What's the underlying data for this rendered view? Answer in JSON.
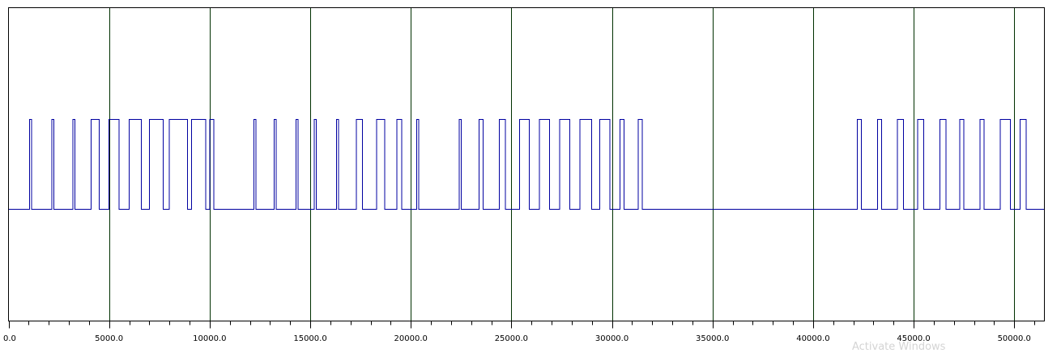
{
  "chart_data": {
    "type": "line",
    "title": "",
    "xlabel": "",
    "ylabel": "",
    "xlim": [
      0,
      51500
    ],
    "ylim": [
      -1.75,
      1.75
    ],
    "grid": true,
    "major_ticks": [
      0,
      5000,
      10000,
      15000,
      20000,
      25000,
      30000,
      35000,
      40000,
      45000,
      50000
    ],
    "minor_tick_step": 1000,
    "x_tick_labels": [
      "0.0",
      "5000.0",
      "10000.0",
      "15000.0",
      "20000.0",
      "25000.0",
      "30000.0",
      "35000.0",
      "40000.0",
      "45000.0",
      "50000.0"
    ],
    "series": [
      {
        "low": -0.5,
        "high": 0.5,
        "transitions": [
          0,
          1050,
          1150,
          2150,
          2250,
          3200,
          3300,
          4100,
          4500,
          5000,
          5500,
          6000,
          6600,
          7000,
          7700,
          8000,
          8900,
          9100,
          9800,
          10000,
          10200,
          12200,
          12300,
          13200,
          13300,
          14300,
          14400,
          15200,
          15300,
          16300,
          16400,
          17300,
          17600,
          18300,
          18700,
          19300,
          19550,
          20300,
          20400,
          22400,
          22500,
          23400,
          23600,
          24400,
          24700,
          25400,
          25900,
          26400,
          26900,
          27400,
          27900,
          28400,
          29000,
          29400,
          29900,
          30400,
          30600,
          31300,
          31500,
          42200,
          42400,
          43200,
          43400,
          44200,
          44500,
          45200,
          45500,
          46300,
          46600,
          47300,
          47500,
          48300,
          48500,
          49300,
          49800,
          50300,
          50600,
          51500
        ]
      }
    ],
    "colors": {
      "signal": "#0000a0",
      "grid": "#003000",
      "frame": "#000000",
      "background": "#ffffff"
    }
  },
  "watermark": "Activate Windows"
}
